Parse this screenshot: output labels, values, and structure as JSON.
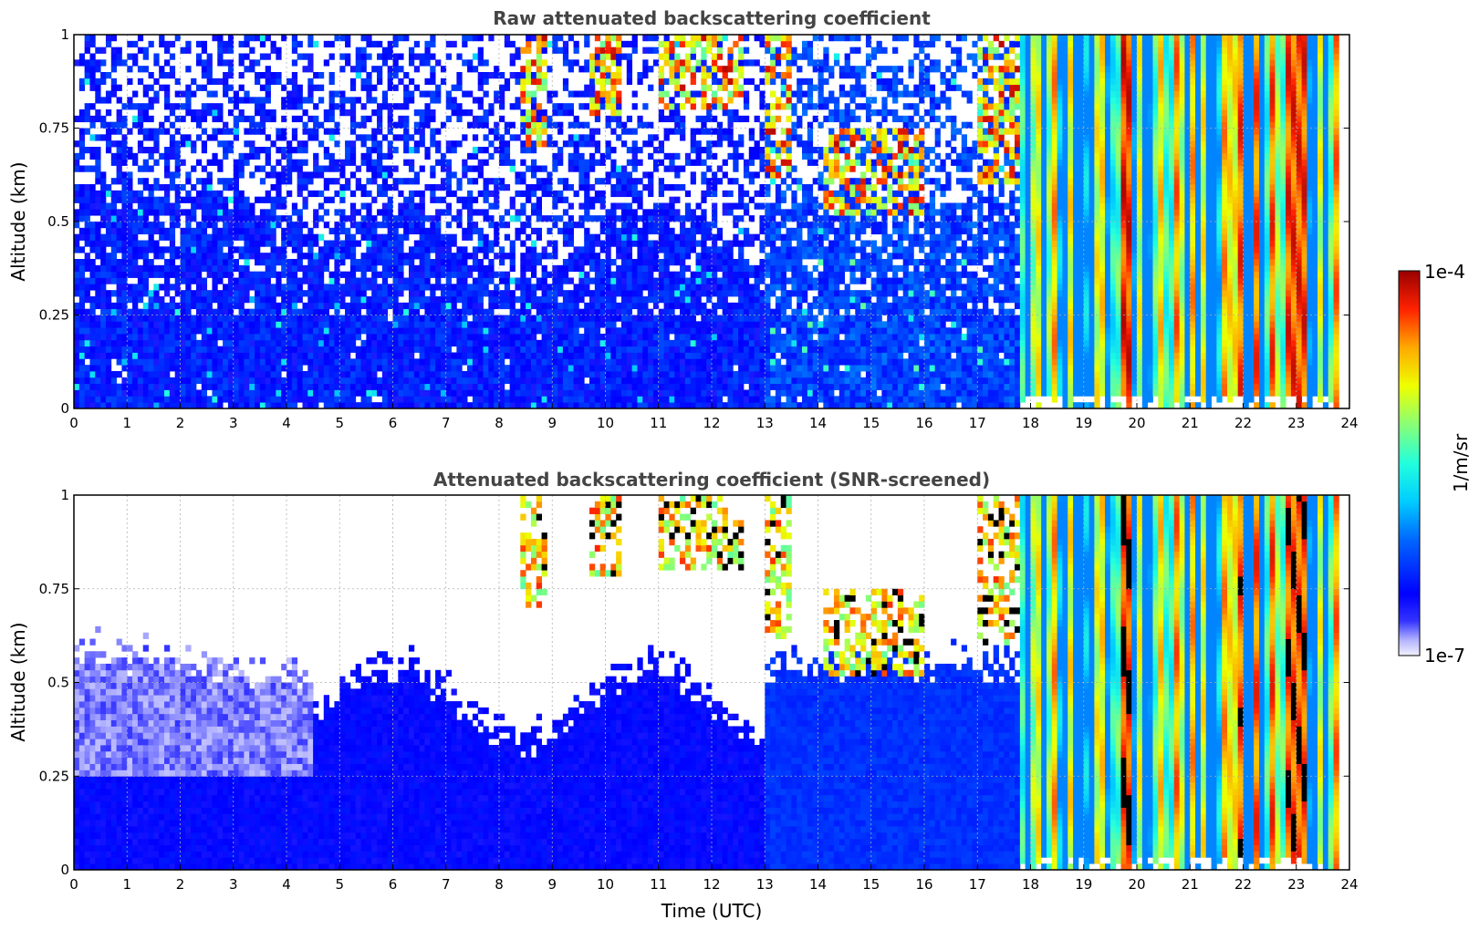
{
  "chart_data": [
    {
      "type": "heatmap",
      "title": "Raw attenuated backscattering coefficient",
      "xlabel": "",
      "ylabel": "Altitude (km)",
      "xlim": [
        0,
        24
      ],
      "ylim": [
        0,
        1
      ],
      "xticks": [
        "0",
        "1",
        "2",
        "3",
        "4",
        "5",
        "6",
        "7",
        "8",
        "9",
        "10",
        "11",
        "12",
        "13",
        "14",
        "15",
        "16",
        "17",
        "18",
        "19",
        "20",
        "21",
        "22",
        "23",
        "24"
      ],
      "yticks": [
        "0",
        "0.25",
        "0.5",
        "0.75",
        "1"
      ],
      "grid": true,
      "variant": "raw"
    },
    {
      "type": "heatmap",
      "title": "Attenuated backscattering coefficient (SNR-screened)",
      "xlabel": "Time (UTC)",
      "ylabel": "Altitude (km)",
      "xlim": [
        0,
        24
      ],
      "ylim": [
        0,
        1
      ],
      "xticks": [
        "0",
        "1",
        "2",
        "3",
        "4",
        "5",
        "6",
        "7",
        "8",
        "9",
        "10",
        "11",
        "12",
        "13",
        "14",
        "15",
        "16",
        "17",
        "18",
        "19",
        "20",
        "21",
        "22",
        "23",
        "24"
      ],
      "yticks": [
        "0",
        "0.25",
        "0.5",
        "0.75",
        "1"
      ],
      "grid": true,
      "variant": "screened"
    }
  ],
  "colorbar": {
    "label": "1/m/sr",
    "max_label": "1e-4",
    "min_label": "1e-7",
    "scale": "log",
    "range": [
      1e-07,
      0.0001
    ],
    "colormap": "jet"
  }
}
